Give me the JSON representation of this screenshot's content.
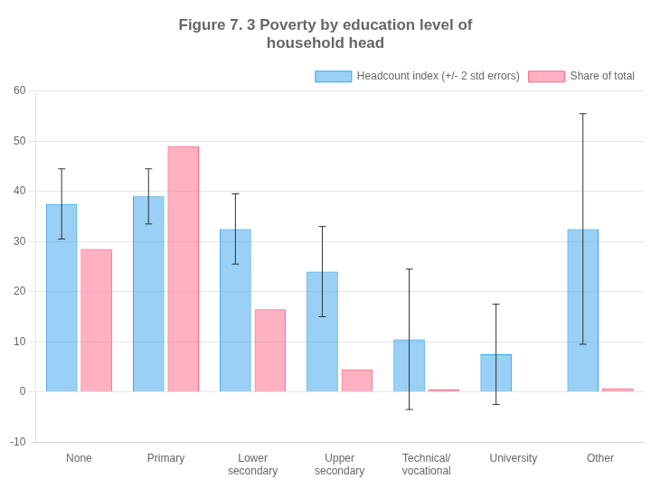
{
  "chart_data": {
    "type": "bar",
    "title": "Figure 7. 3 Poverty by education level of\nhousehold head",
    "categories": [
      "None",
      "Primary",
      "Lower\nsecondary",
      "Upper\nsecondary",
      "Technical/\nvocational",
      "University",
      "Other"
    ],
    "series": [
      {
        "name": "Headcount index (+/- 2 std errors)",
        "values": [
          37.5,
          39,
          32.5,
          24,
          10.5,
          7.5,
          32.5
        ],
        "errors": [
          7,
          5.5,
          7,
          9,
          14,
          10,
          23
        ]
      },
      {
        "name": "Share of total",
        "values": [
          28.5,
          49,
          16.5,
          4.5,
          0.5,
          0,
          0.7
        ]
      }
    ],
    "ylim": [
      -10,
      60
    ],
    "yticks": [
      -10,
      0,
      10,
      20,
      30,
      40,
      50,
      60
    ],
    "grid": true,
    "legend": "upper right"
  }
}
